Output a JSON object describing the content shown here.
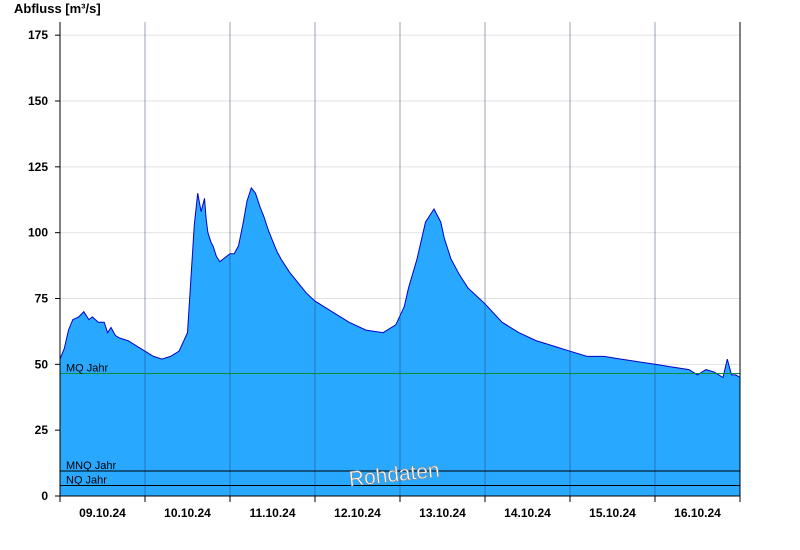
{
  "chart_data": {
    "type": "area",
    "title": "",
    "ylabel": "Abfluss [m³/s]",
    "xlabel": "",
    "ylim": [
      0,
      180
    ],
    "yticks": [
      0,
      25,
      50,
      75,
      100,
      125,
      150,
      175
    ],
    "x_tick_labels": [
      "09.10.24",
      "10.10.24",
      "11.10.24",
      "12.10.24",
      "13.10.24",
      "14.10.24",
      "15.10.24",
      "16.10.24"
    ],
    "xlim_days": [
      0,
      8
    ],
    "fill_color": "#29a8ff",
    "line_color": "#0000c8",
    "series": [
      {
        "x": [
          0.0,
          0.05,
          0.1,
          0.15,
          0.22,
          0.28,
          0.34,
          0.38,
          0.45,
          0.52,
          0.56,
          0.6,
          0.65,
          0.7,
          0.8,
          0.9,
          1.0,
          1.1,
          1.2,
          1.3,
          1.4,
          1.5,
          1.58,
          1.62,
          1.66,
          1.7,
          1.72,
          1.74,
          1.78,
          1.8,
          1.84,
          1.88,
          1.92,
          1.96,
          2.0,
          2.05,
          2.1,
          2.15,
          2.2,
          2.25,
          2.3,
          2.35,
          2.4,
          2.45,
          2.5,
          2.55,
          2.6,
          2.7,
          2.8,
          2.9,
          3.0,
          3.2,
          3.4,
          3.6,
          3.8,
          3.95,
          4.05,
          4.1,
          4.2,
          4.3,
          4.4,
          4.48,
          4.52,
          4.56,
          4.6,
          4.7,
          4.8,
          5.0,
          5.2,
          5.4,
          5.6,
          5.8,
          6.0,
          6.2,
          6.4,
          6.6,
          6.8,
          7.0,
          7.2,
          7.4,
          7.5,
          7.6,
          7.7,
          7.8,
          7.85,
          7.9,
          7.95,
          8.0
        ],
        "values": [
          52,
          56,
          63,
          67,
          68,
          70,
          67,
          68,
          66,
          66,
          62,
          64,
          61,
          60,
          59,
          57,
          55,
          53,
          52,
          53,
          55,
          62,
          103,
          115,
          108,
          113,
          105,
          100,
          96,
          95,
          91,
          89,
          90,
          91,
          92,
          92,
          95,
          103,
          112,
          117,
          115,
          110,
          106,
          101,
          97,
          93,
          90,
          85,
          81,
          77,
          74,
          70,
          66,
          63,
          62,
          65,
          72,
          79,
          90,
          104,
          109,
          104,
          98,
          94,
          90,
          84,
          79,
          73,
          66,
          62,
          59,
          57,
          55,
          53,
          53,
          52,
          51,
          50,
          49,
          48,
          46,
          48,
          47,
          45,
          52,
          46,
          46,
          45
        ]
      }
    ],
    "reference_lines": [
      {
        "label": "MQ Jahr",
        "value": 46.5,
        "color": "#0a8a3c"
      },
      {
        "label": "MNQ Jahr",
        "value": 9.5,
        "color": "#000000"
      },
      {
        "label": "NQ Jahr",
        "value": 4.0,
        "color": "#000000"
      }
    ],
    "annotations": [
      {
        "text": "Rohdaten"
      }
    ]
  }
}
